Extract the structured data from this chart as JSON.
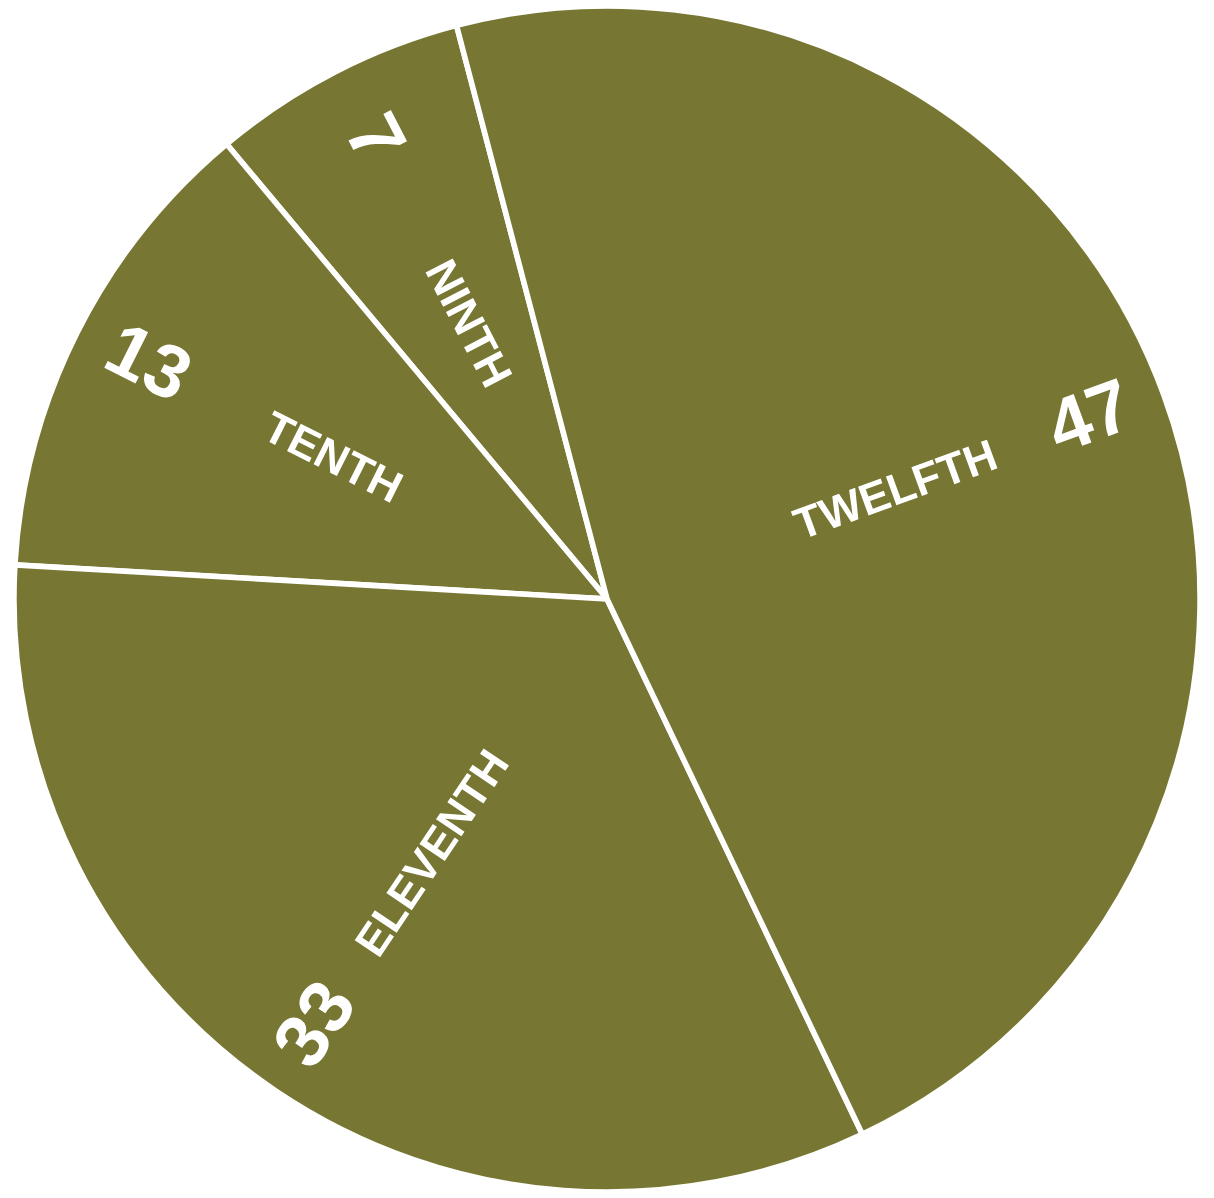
{
  "chart_data": {
    "type": "pie",
    "categories": [
      "NINTH",
      "TENTH",
      "ELEVENTH",
      "TWELFTH"
    ],
    "values": [
      7,
      13,
      33,
      47
    ],
    "colors": [
      "#777733",
      "#777733",
      "#777733",
      "#777733"
    ],
    "data_labels": true
  }
}
